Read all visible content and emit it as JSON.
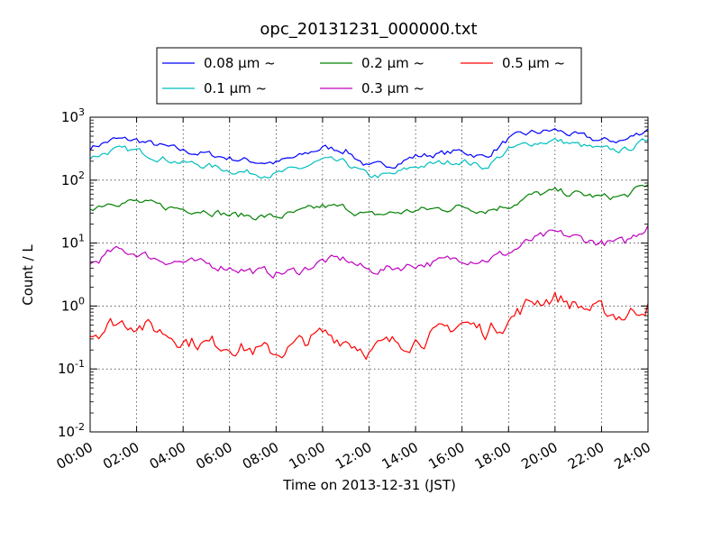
{
  "chart_data": {
    "type": "line",
    "title": "opc_20131231_000000.txt",
    "xlabel": "Time on 2013-12-31 (JST)",
    "ylabel": "Count / L",
    "yscale": "log",
    "ylim": [
      0.01,
      1000
    ],
    "xlim": [
      "00:00",
      "24:00"
    ],
    "x_ticks": [
      "00:00",
      "02:00",
      "04:00",
      "06:00",
      "08:00",
      "10:00",
      "12:00",
      "14:00",
      "16:00",
      "18:00",
      "20:00",
      "22:00",
      "24:00"
    ],
    "y_ticks": [
      {
        "base": "10",
        "exp": "-2"
      },
      {
        "base": "10",
        "exp": "-1"
      },
      {
        "base": "10",
        "exp": "0"
      },
      {
        "base": "10",
        "exp": "1"
      },
      {
        "base": "10",
        "exp": "2"
      },
      {
        "base": "10",
        "exp": "3"
      }
    ],
    "grid": true,
    "legend_position": "top",
    "x": [
      "00:00",
      "01:00",
      "02:00",
      "03:00",
      "04:00",
      "05:00",
      "06:00",
      "07:00",
      "08:00",
      "09:00",
      "10:00",
      "11:00",
      "12:00",
      "13:00",
      "14:00",
      "15:00",
      "16:00",
      "17:00",
      "18:00",
      "19:00",
      "20:00",
      "21:00",
      "22:00",
      "23:00",
      "24:00"
    ],
    "series": [
      {
        "name": "0.08 μm ~",
        "color": "#0000ff",
        "values": [
          330,
          440,
          430,
          350,
          290,
          260,
          225,
          200,
          190,
          235,
          330,
          300,
          160,
          180,
          240,
          260,
          290,
          230,
          450,
          560,
          620,
          500,
          420,
          430,
          650
        ]
      },
      {
        "name": "0.1 μm ~",
        "color": "#00bfbf",
        "values": [
          230,
          300,
          290,
          230,
          190,
          170,
          145,
          130,
          125,
          150,
          205,
          185,
          115,
          120,
          165,
          185,
          205,
          160,
          300,
          390,
          430,
          360,
          300,
          300,
          430
        ]
      },
      {
        "name": "0.2 μm ~",
        "color": "#008000",
        "values": [
          37,
          47,
          45,
          38,
          35,
          34,
          28,
          27,
          26,
          30,
          38,
          36,
          27,
          30,
          33,
          35,
          38,
          34,
          40,
          57,
          65,
          60,
          53,
          55,
          85
        ]
      },
      {
        "name": "0.3 μm ~",
        "color": "#bf00bf",
        "values": [
          4.5,
          7.5,
          7.0,
          5.5,
          5.0,
          4.5,
          4.2,
          3.6,
          3.3,
          3.6,
          5.2,
          5.5,
          3.6,
          4.0,
          4.6,
          5.0,
          5.8,
          5.5,
          7.0,
          11,
          14,
          12,
          10,
          10,
          19
        ]
      },
      {
        "name": "0.5 μm ~",
        "color": "#ff0000",
        "values": [
          0.35,
          0.55,
          0.55,
          0.4,
          0.3,
          0.25,
          0.25,
          0.2,
          0.18,
          0.25,
          0.35,
          0.3,
          0.2,
          0.25,
          0.3,
          0.35,
          0.55,
          0.4,
          0.6,
          1.2,
          1.4,
          1.0,
          0.8,
          0.7,
          1.1
        ]
      }
    ]
  }
}
